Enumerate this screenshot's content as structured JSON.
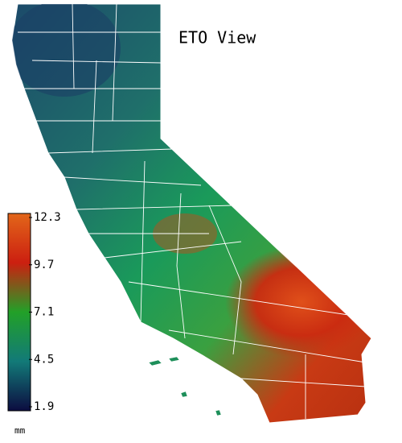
{
  "title": "ETO View",
  "legend": {
    "unit": "mm",
    "range": [
      1.9,
      12.3
    ],
    "ticks": [
      1.9,
      4.5,
      7.1,
      9.7,
      12.3
    ]
  }
}
